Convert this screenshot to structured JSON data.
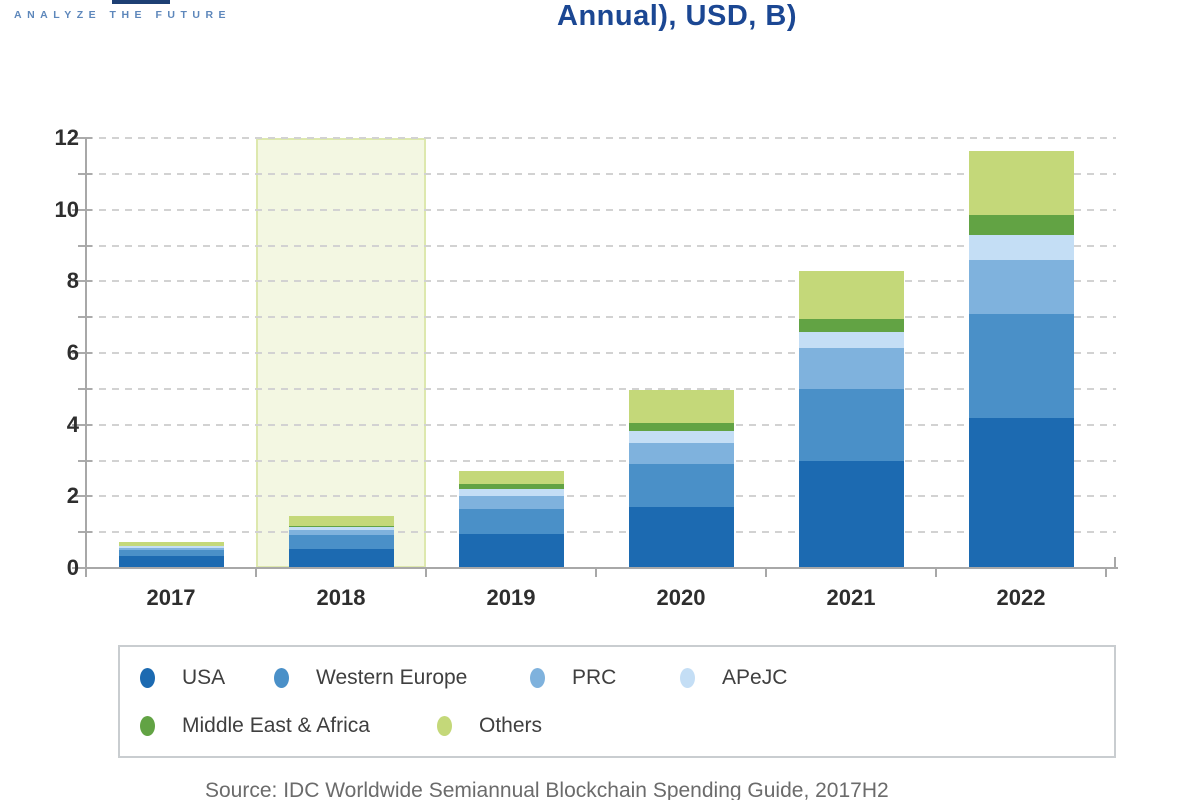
{
  "header": {
    "tagline": "ANALYZE THE FUTURE",
    "title_visible": "Annual), USD, B)"
  },
  "chart_data": {
    "type": "bar",
    "stacked": true,
    "title": "Annual), USD, B)",
    "units": "USD billions",
    "categories": [
      "2017",
      "2018",
      "2019",
      "2020",
      "2021",
      "2022"
    ],
    "series": [
      {
        "name": "USA",
        "color": "#1c6ab1",
        "values": [
          0.35,
          0.52,
          0.95,
          1.7,
          3.0,
          4.2
        ]
      },
      {
        "name": "Western Europe",
        "color": "#4a90c8",
        "values": [
          0.15,
          0.4,
          0.7,
          1.2,
          2.0,
          2.9
        ]
      },
      {
        "name": "PRC",
        "color": "#7fb2dd",
        "values": [
          0.06,
          0.13,
          0.35,
          0.6,
          1.15,
          1.5
        ]
      },
      {
        "name": "APeJC",
        "color": "#c4def5",
        "values": [
          0.05,
          0.1,
          0.2,
          0.33,
          0.45,
          0.7
        ]
      },
      {
        "name": "Middle East & Africa",
        "color": "#62a344",
        "values": [
          0.02,
          0.03,
          0.15,
          0.23,
          0.35,
          0.55
        ]
      },
      {
        "name": "Others",
        "color": "#c4d879",
        "values": [
          0.09,
          0.27,
          0.37,
          0.9,
          1.35,
          1.8
        ]
      }
    ],
    "totals": [
      0.72,
      1.45,
      2.72,
      4.96,
      8.3,
      11.65
    ],
    "ylim": [
      0,
      12
    ],
    "yticks": [
      0,
      2,
      4,
      6,
      8,
      10,
      12
    ],
    "minor_ticks_every": 1,
    "grid": "dashed horizontal line at every 1 unit",
    "legend_position": "boxed, below chart",
    "highlighted_category": "2018",
    "highlight_fill": "#f3f7e2",
    "highlight_border": "#dde8ae"
  },
  "footer": {
    "source": "Source: IDC Worldwide Semiannual Blockchain Spending Guide, 2017H2"
  }
}
